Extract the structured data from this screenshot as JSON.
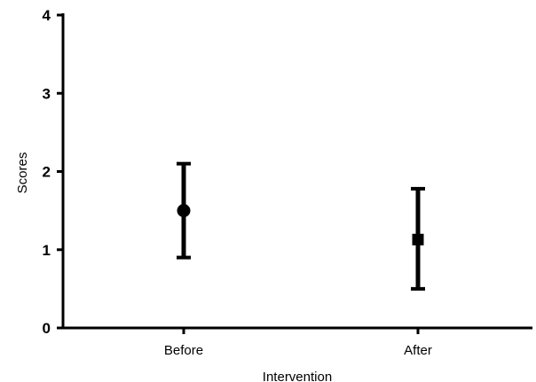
{
  "chart_data": {
    "type": "scatter",
    "title": "",
    "xlabel": "Intervention",
    "ylabel": "Scores",
    "categories": [
      "Before",
      "After"
    ],
    "ylim": [
      0,
      4
    ],
    "yticks": [
      "0",
      "1",
      "2",
      "3",
      "4"
    ],
    "grid": false,
    "legend": "none",
    "series": [
      {
        "points": [
          {
            "category": "Before",
            "value": 1.5,
            "lower": 0.9,
            "upper": 2.1,
            "marker": "circle"
          },
          {
            "category": "After",
            "value": 1.13,
            "lower": 0.5,
            "upper": 1.78,
            "marker": "square"
          }
        ]
      }
    ],
    "colors": {
      "marks": "#000000",
      "axes": "#000000",
      "background": "#ffffff"
    }
  }
}
